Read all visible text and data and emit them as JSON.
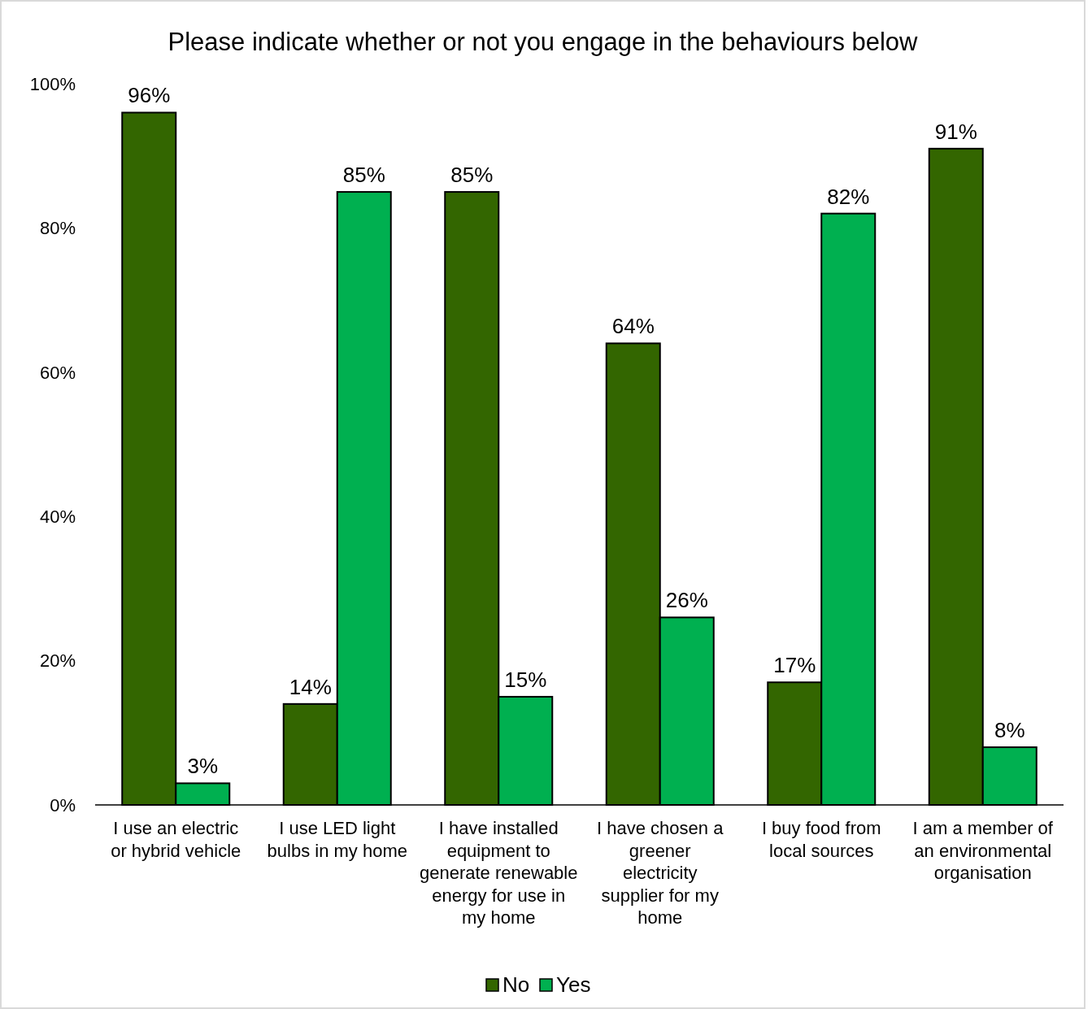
{
  "chart_data": {
    "type": "bar",
    "title": "Please indicate whether or not you engage in the behaviours below",
    "categories": [
      "I use an electric or hybrid vehicle",
      "I use LED light bulbs in my home",
      "I have installed equipment to generate renewable energy for use in my home",
      "I have chosen a greener electricity supplier for my home",
      "I buy food from local sources",
      "I am a member of an environmental organisation"
    ],
    "series": [
      {
        "name": "No",
        "color": "#336600",
        "values": [
          96,
          14,
          85,
          64,
          17,
          91
        ],
        "value_labels": [
          "96%",
          "14%",
          "85%",
          "64%",
          "17%",
          "91%"
        ]
      },
      {
        "name": "Yes",
        "color": "#00b050",
        "values": [
          3,
          85,
          15,
          26,
          82,
          8
        ],
        "value_labels": [
          "3%",
          "85%",
          "15%",
          "26%",
          "82%",
          "8%"
        ]
      }
    ],
    "ylim": [
      0,
      100
    ],
    "yticks": [
      {
        "value": 0,
        "label": "0%"
      },
      {
        "value": 20,
        "label": "20%"
      },
      {
        "value": 40,
        "label": "40%"
      },
      {
        "value": 60,
        "label": "60%"
      },
      {
        "value": 80,
        "label": "80%"
      },
      {
        "value": 100,
        "label": "100%"
      }
    ],
    "grid": false,
    "legend": "bottom"
  }
}
